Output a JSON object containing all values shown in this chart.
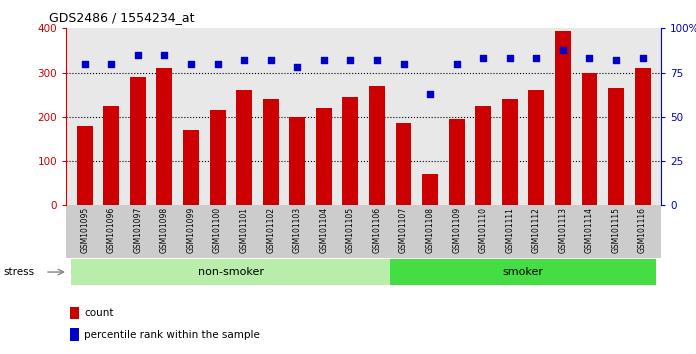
{
  "title": "GDS2486 / 1554234_at",
  "categories": [
    "GSM101095",
    "GSM101096",
    "GSM101097",
    "GSM101098",
    "GSM101099",
    "GSM101100",
    "GSM101101",
    "GSM101102",
    "GSM101103",
    "GSM101104",
    "GSM101105",
    "GSM101106",
    "GSM101107",
    "GSM101108",
    "GSM101109",
    "GSM101110",
    "GSM101111",
    "GSM101112",
    "GSM101113",
    "GSM101114",
    "GSM101115",
    "GSM101116"
  ],
  "bar_values": [
    180,
    225,
    290,
    310,
    170,
    215,
    260,
    240,
    200,
    220,
    245,
    270,
    185,
    70,
    195,
    225,
    240,
    260,
    395,
    300,
    265,
    310
  ],
  "percentile_values": [
    80,
    80,
    85,
    85,
    80,
    80,
    82,
    82,
    78,
    82,
    82,
    82,
    80,
    63,
    80,
    83,
    83,
    83,
    88,
    83,
    82,
    83
  ],
  "bar_color": "#cc0000",
  "dot_color": "#0000cc",
  "ylim_left": [
    0,
    400
  ],
  "ylim_right": [
    0,
    100
  ],
  "yticks_left": [
    0,
    100,
    200,
    300,
    400
  ],
  "yticks_right": [
    0,
    25,
    50,
    75,
    100
  ],
  "ytick_labels_right": [
    "0",
    "25",
    "50",
    "75",
    "100%"
  ],
  "grid_values": [
    100,
    200,
    300
  ],
  "non_smoker_count": 12,
  "non_smoker_color": "#b8eeaa",
  "smoker_color": "#44dd44",
  "stress_label": "stress",
  "non_smoker_label": "non-smoker",
  "smoker_label": "smoker",
  "legend_count_label": "count",
  "legend_pct_label": "percentile rank within the sample",
  "bar_width": 0.6,
  "plot_bg_color": "#e8e8e8",
  "fig_bg_color": "#ffffff",
  "tick_area_color": "#cccccc"
}
